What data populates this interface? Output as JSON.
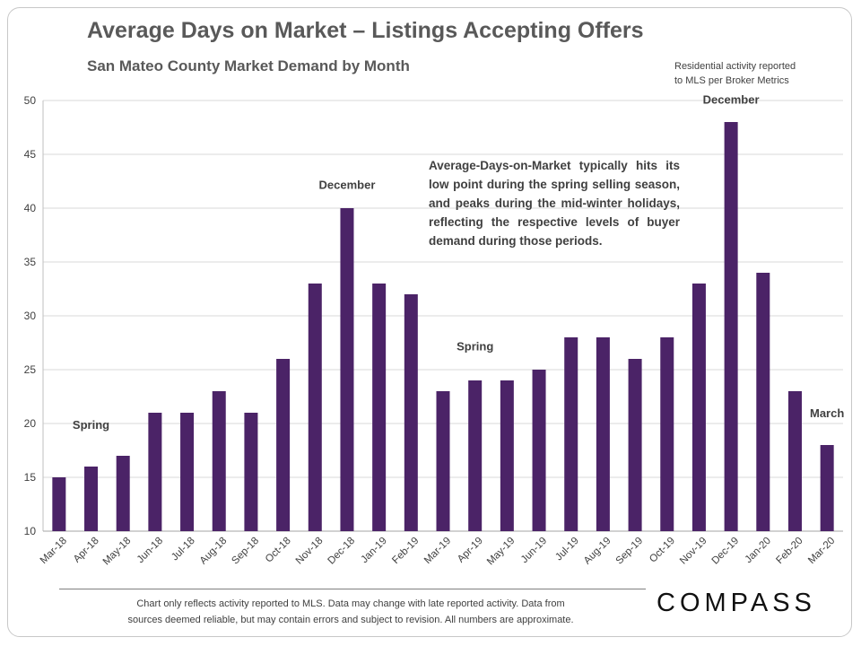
{
  "title": "Average Days on Market – Listings Accepting Offers",
  "subtitle": "San Mateo County Market Demand by Month",
  "source_note": "Residential activity reported\nto MLS per Broker Metrics",
  "annotation_box": "Average-Days-on-Market typically hits its low point during the spring selling season, and peaks during the mid-winter holidays, reflecting the respective levels of buyer demand during those periods.",
  "footnote": "Chart only reflects activity reported to MLS. Data may change with late reported activity.  Data from\nsources deemed reliable, but may contain errors and subject to revision. All numbers are approximate.",
  "logo": "COMPASS",
  "colors": {
    "bar": "#4b2367",
    "grid": "#d9d9d9",
    "text": "#404040"
  },
  "chart_data": {
    "type": "bar",
    "categories": [
      "Mar-18",
      "Apr-18",
      "May-18",
      "Jun-18",
      "Jul-18",
      "Aug-18",
      "Sep-18",
      "Oct-18",
      "Nov-18",
      "Dec-18",
      "Jan-19",
      "Feb-19",
      "Mar-19",
      "Apr-19",
      "May-19",
      "Jun-19",
      "Jul-19",
      "Aug-19",
      "Sep-19",
      "Oct-19",
      "Nov-19",
      "Dec-19",
      "Jan-20",
      "Feb-20",
      "Mar-20"
    ],
    "values": [
      15,
      16,
      17,
      21,
      21,
      23,
      21,
      26,
      33,
      40,
      33,
      32,
      23,
      24,
      24,
      25,
      28,
      28,
      26,
      28,
      33,
      48,
      34,
      23,
      18
    ],
    "ylim": [
      10,
      50
    ],
    "yticks": [
      10,
      15,
      20,
      25,
      30,
      35,
      40,
      45,
      50
    ],
    "grid": true,
    "xlabel": "",
    "ylabel": "",
    "annotations": [
      {
        "text": "Spring",
        "category": "Apr-18",
        "value": 19.5
      },
      {
        "text": "December",
        "category": "Dec-18",
        "value": 41.8
      },
      {
        "text": "Spring",
        "category": "Apr-19",
        "value": 26.8
      },
      {
        "text": "December",
        "category": "Dec-19",
        "value": 49.7
      },
      {
        "text": "March",
        "category": "Mar-20",
        "value": 20.6
      }
    ]
  }
}
